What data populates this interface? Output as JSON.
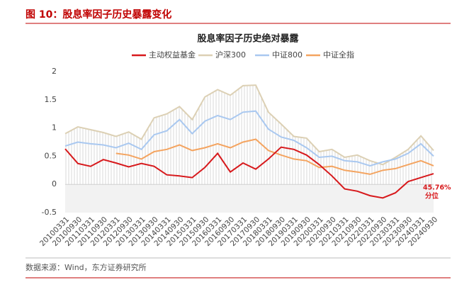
{
  "figure_title": "图 10：股息率因子历史暴露变化",
  "source": "数据来源：Wind，东方证券研究所",
  "chart_data": {
    "type": "line",
    "title": "股息率因子历史绝对暴露",
    "categories": [
      "20100331",
      "20100930",
      "20110331",
      "20110930",
      "20120331",
      "20120930",
      "20130331",
      "20130930",
      "20140331",
      "20140930",
      "20150331",
      "20150930",
      "20160331",
      "20160930",
      "20170331",
      "20170930",
      "20180331",
      "20180930",
      "20190331",
      "20190930",
      "20200331",
      "20200930",
      "20210331",
      "20210930",
      "20220331",
      "20220930",
      "20230331",
      "20230930",
      "20240331",
      "20240930"
    ],
    "series": [
      {
        "name": "主动权益基金",
        "color": "#d7191c",
        "values": [
          0.63,
          0.37,
          0.32,
          0.44,
          0.38,
          0.31,
          0.37,
          0.32,
          0.17,
          0.15,
          0.12,
          0.3,
          0.55,
          0.22,
          0.38,
          0.27,
          0.45,
          0.66,
          0.62,
          0.52,
          0.35,
          0.15,
          -0.08,
          -0.12,
          -0.2,
          -0.24,
          -0.15,
          0.05,
          0.12,
          0.19
        ]
      },
      {
        "name": "沪深300",
        "color": "#dcd0b4",
        "values": [
          0.9,
          1.02,
          0.97,
          0.92,
          0.85,
          0.93,
          0.8,
          1.18,
          1.25,
          1.38,
          1.15,
          1.55,
          1.68,
          1.58,
          1.75,
          1.76,
          1.28,
          1.07,
          0.85,
          0.82,
          0.58,
          0.62,
          0.48,
          0.52,
          0.42,
          0.35,
          0.48,
          0.62,
          0.86,
          0.6
        ]
      },
      {
        "name": "中证800",
        "color": "#a9c8f0",
        "values": [
          0.68,
          0.75,
          0.72,
          0.7,
          0.65,
          0.73,
          0.62,
          0.88,
          0.95,
          1.15,
          0.9,
          1.12,
          1.22,
          1.15,
          1.28,
          1.3,
          0.98,
          0.84,
          0.78,
          0.65,
          0.48,
          0.5,
          0.42,
          0.4,
          0.33,
          0.4,
          0.45,
          0.55,
          0.72,
          0.5
        ]
      },
      {
        "name": "中证全指",
        "color": "#f4a460",
        "values": [
          null,
          null,
          null,
          null,
          0.55,
          0.52,
          0.45,
          0.58,
          0.62,
          0.7,
          0.6,
          0.65,
          0.72,
          0.65,
          0.75,
          0.8,
          0.6,
          0.52,
          0.45,
          0.42,
          0.3,
          0.32,
          0.25,
          0.22,
          0.18,
          0.25,
          0.28,
          0.35,
          0.42,
          0.33
        ]
      }
    ],
    "ylim": [
      -0.5,
      2
    ],
    "yticks": [
      -0.5,
      0,
      0.5,
      1,
      1.5,
      2
    ],
    "annotations": [
      "45.76%",
      "分位"
    ]
  }
}
